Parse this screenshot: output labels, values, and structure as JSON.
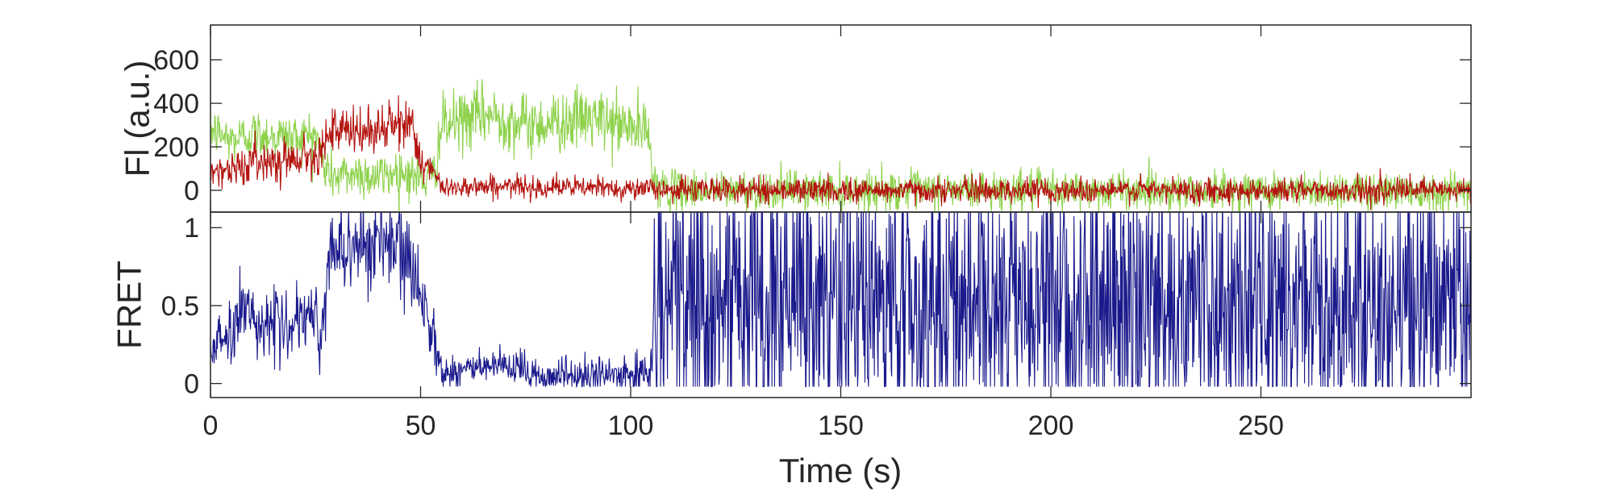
{
  "chart_data": [
    {
      "type": "line",
      "title": "",
      "xlabel": "",
      "ylabel": "Fl (a.u.)",
      "xlim": [
        0,
        300
      ],
      "ylim": [
        -100,
        760
      ],
      "xticks": [
        0,
        50,
        100,
        150,
        200,
        250
      ],
      "yticks": [
        0,
        200,
        400,
        600
      ],
      "ytick_labels": [
        "0",
        "200",
        "400",
        "600"
      ],
      "grid": false,
      "x_tick_labels_shown": false,
      "series": [
        {
          "color": "#8ed24c",
          "description_points": {
            "x": [
              0,
              5,
              10,
              15,
              20,
              25,
              27,
              30,
              35,
              40,
              45,
              50,
              53,
              55,
              60,
              65,
              70,
              75,
              80,
              85,
              90,
              95,
              100,
              104,
              106,
              110,
              150,
              200,
              250,
              300
            ],
            "y": [
              280,
              230,
              260,
              250,
              240,
              260,
              100,
              60,
              80,
              60,
              90,
              50,
              60,
              290,
              320,
              350,
              330,
              300,
              310,
              320,
              330,
              310,
              290,
              270,
              20,
              0,
              0,
              0,
              0,
              0
            ]
          },
          "noise_sd": [
            55,
            55,
            55,
            55,
            55,
            55,
            55,
            55,
            55,
            55,
            55,
            55,
            55,
            70,
            70,
            70,
            70,
            70,
            70,
            70,
            70,
            70,
            70,
            70,
            45,
            45,
            45,
            45,
            45,
            45
          ]
        },
        {
          "color": "#b3130f",
          "description_points": {
            "x": [
              0,
              5,
              10,
              15,
              20,
              25,
              27,
              30,
              35,
              40,
              45,
              48,
              50,
              53,
              55,
              60,
              80,
              100,
              105,
              110,
              150,
              200,
              250,
              300
            ],
            "y": [
              100,
              90,
              130,
              140,
              150,
              160,
              240,
              270,
              260,
              280,
              300,
              320,
              130,
              80,
              10,
              20,
              15,
              10,
              5,
              5,
              0,
              0,
              0,
              0
            ]
          },
          "noise_sd": [
            40,
            40,
            45,
            45,
            45,
            45,
            55,
            55,
            55,
            55,
            55,
            55,
            40,
            35,
            25,
            25,
            25,
            25,
            25,
            28,
            28,
            28,
            28,
            28
          ]
        }
      ]
    },
    {
      "type": "line",
      "title": "",
      "xlabel": "Time (s)",
      "ylabel": "FRET",
      "xlim": [
        0,
        300
      ],
      "ylim": [
        -0.09,
        1.1
      ],
      "xticks": [
        0,
        50,
        100,
        150,
        200,
        250
      ],
      "xtick_labels": [
        "0",
        "50",
        "100",
        "150",
        "200",
        "250"
      ],
      "yticks": [
        0,
        0.5,
        1
      ],
      "ytick_labels": [
        "0",
        "0.5",
        "1"
      ],
      "grid": false,
      "series": [
        {
          "color": "#1a1a8c",
          "description_points": {
            "x": [
              0,
              5,
              8,
              10,
              15,
              20,
              25,
              26,
              28,
              30,
              35,
              40,
              45,
              50,
              53,
              55,
              60,
              70,
              80,
              90,
              100,
              105,
              106,
              150,
              200,
              250,
              300
            ],
            "y": [
              0.25,
              0.3,
              0.55,
              0.4,
              0.4,
              0.35,
              0.45,
              0.2,
              0.8,
              0.85,
              0.9,
              0.9,
              0.85,
              0.6,
              0.35,
              0.05,
              0.1,
              0.1,
              0.05,
              0.05,
              0.05,
              0.1,
              0.5,
              0.5,
              0.5,
              0.5,
              0.5
            ]
          },
          "noise_sd": [
            0.1,
            0.1,
            0.12,
            0.1,
            0.1,
            0.1,
            0.1,
            0.12,
            0.15,
            0.15,
            0.15,
            0.15,
            0.15,
            0.12,
            0.1,
            0.06,
            0.06,
            0.06,
            0.06,
            0.06,
            0.06,
            0.08,
            0.45,
            0.45,
            0.45,
            0.45,
            0.45
          ]
        }
      ]
    }
  ]
}
